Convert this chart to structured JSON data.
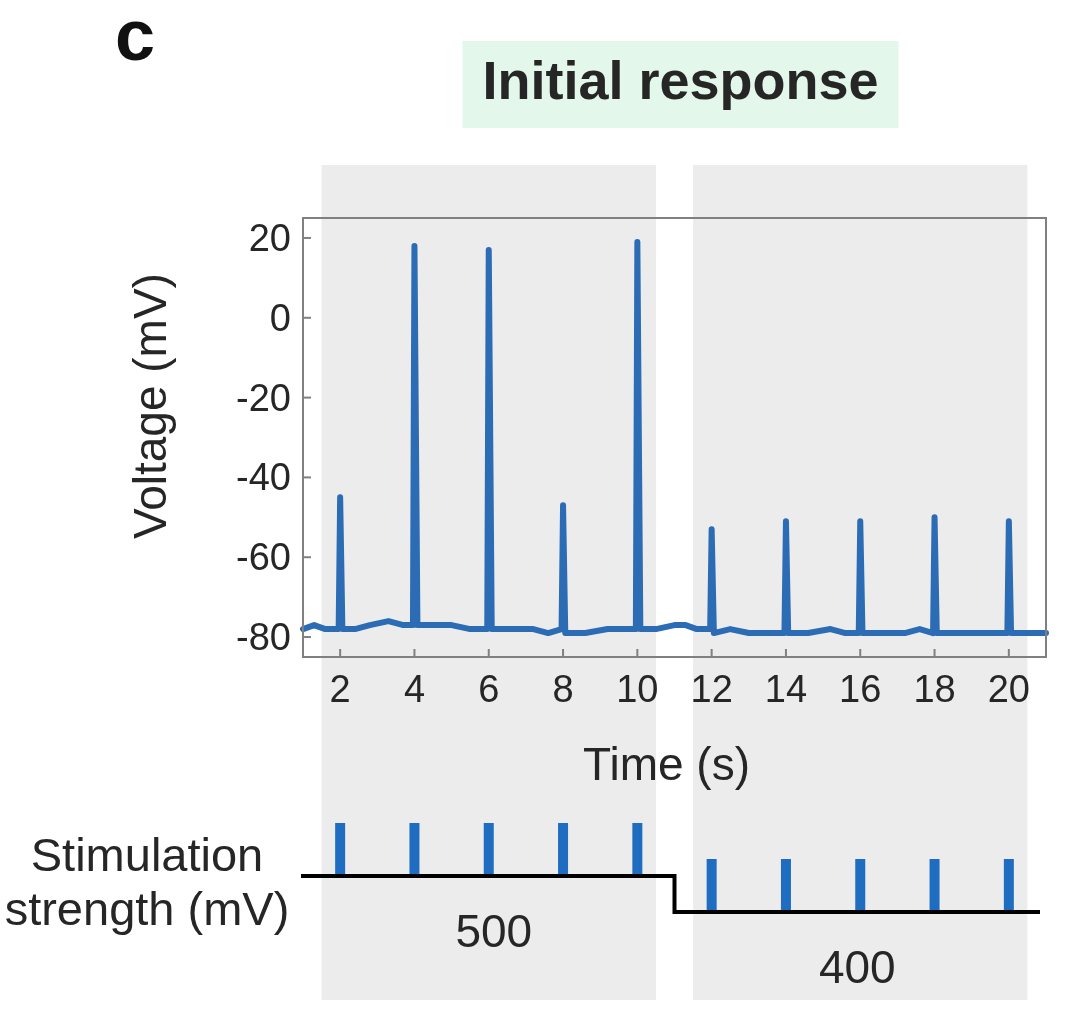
{
  "chart_data": {
    "type": "line",
    "title": "Initial response",
    "xlabel": "Time (s)",
    "ylabel": "Voltage (mV)",
    "annotations": [
      "c",
      "Stimulation strength (mV)",
      "500",
      "400"
    ],
    "x": [
      1,
      1.3,
      1.6,
      1.96,
      2,
      2.06,
      2.4,
      2.8,
      3.3,
      3.7,
      3.96,
      4,
      4.08,
      4.5,
      5,
      5.5,
      5.96,
      6,
      6.08,
      6.6,
      7.2,
      7.6,
      7.96,
      8,
      8.06,
      8.6,
      9.2,
      9.6,
      9.96,
      10,
      10.08,
      10.5,
      11,
      11.3,
      11.6,
      11.96,
      12,
      12.06,
      12.5,
      13,
      13.5,
      13.96,
      14,
      14.06,
      14.6,
      15.2,
      15.6,
      15.96,
      16,
      16.06,
      16.6,
      17.2,
      17.6,
      17.96,
      18,
      18.06,
      18.6,
      19.2,
      19.6,
      19.96,
      20,
      20.06,
      20.5,
      21
    ],
    "series": [
      {
        "color": "#2b6cb5",
        "values": [
          -78,
          -77,
          -78,
          -78,
          -45,
          -78,
          -78,
          -77,
          -76,
          -77,
          -77,
          18,
          -77,
          -77,
          -77,
          -78,
          -78,
          17,
          -78,
          -78,
          -78,
          -79,
          -78,
          -47,
          -79,
          -79,
          -78,
          -78,
          -78,
          19,
          -78,
          -78,
          -77,
          -77,
          -78,
          -78,
          -53,
          -79,
          -78,
          -79,
          -79,
          -79,
          -51,
          -79,
          -79,
          -78,
          -79,
          -79,
          -51,
          -79,
          -79,
          -79,
          -78,
          -79,
          -50,
          -79,
          -79,
          -79,
          -79,
          -79,
          -51,
          -79,
          -79,
          -79
        ]
      }
    ],
    "xlim": [
      1,
      21
    ],
    "ylim": [
      -85,
      25
    ],
    "xticks": [
      2,
      4,
      6,
      8,
      10,
      12,
      14,
      16,
      18,
      20
    ],
    "yticks": [
      -80,
      -60,
      -40,
      -20,
      0,
      20
    ],
    "bands": [
      {
        "axis": "x",
        "from": 1.5,
        "to": 10.5,
        "color": "#ececec"
      },
      {
        "axis": "x",
        "from": 11.5,
        "to": 20.5,
        "color": "#ececec"
      }
    ]
  }
}
